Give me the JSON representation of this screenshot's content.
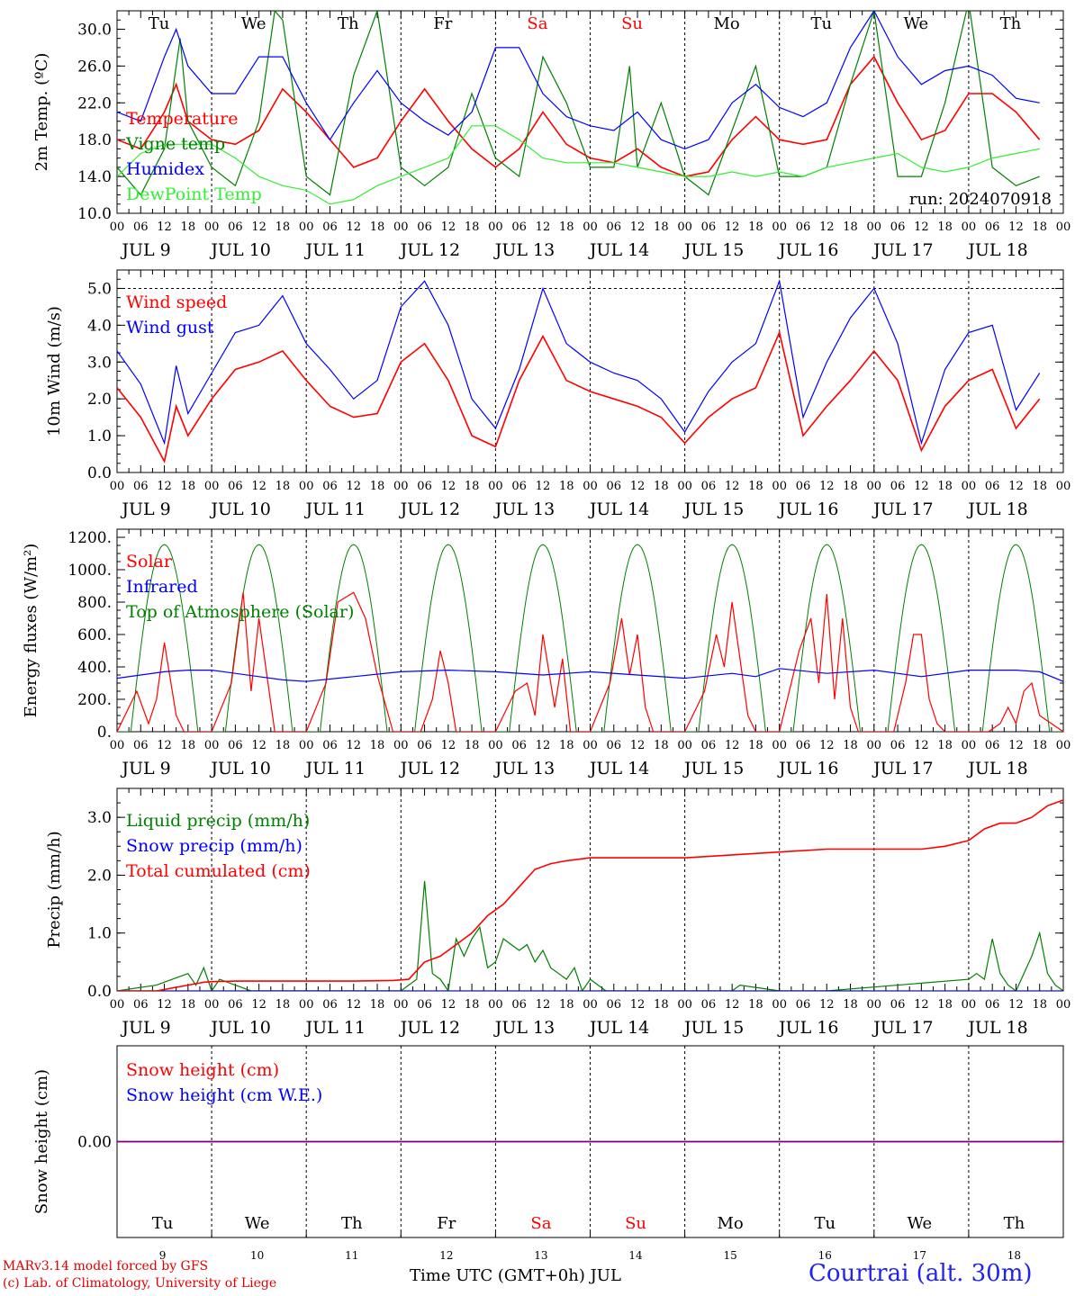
{
  "colors": {
    "red": "#ff0000",
    "green": "#008000",
    "blue": "#0000ff",
    "light_green": "#33ee33",
    "purple": "#800080",
    "axis": "#000000"
  },
  "days": {
    "abbr": [
      "Tu",
      "We",
      "Th",
      "Fr",
      "Sa",
      "Su",
      "Mo",
      "Tu",
      "We",
      "Th"
    ],
    "weekend": [
      false,
      false,
      false,
      false,
      true,
      true,
      false,
      false,
      false,
      false
    ],
    "date_labels": [
      "JUL  9",
      "JUL 10",
      "JUL 11",
      "JUL 12",
      "JUL 13",
      "JUL 14",
      "JUL 15",
      "JUL 16",
      "JUL 17",
      "JUL 18"
    ],
    "day_numbers": [
      "9",
      "10",
      "11",
      "12",
      "13",
      "14",
      "15",
      "16",
      "17",
      "18"
    ],
    "hour_ticks": [
      "00",
      "06",
      "12",
      "18"
    ],
    "end_hour": "00"
  },
  "chart_data": [
    {
      "type": "line",
      "ylabel": "2m Temp. (ºC)",
      "ylim": [
        10,
        32
      ],
      "yticks": [
        "10.0",
        "14.0",
        "18.0",
        "22.0",
        "26.0",
        "30.0"
      ],
      "x_unit": "hours since JUL 9 00 UTC",
      "run_label": "run: 2024070918",
      "series": [
        {
          "name": "Temperature",
          "color": "#ff0000",
          "x": [
            0,
            6,
            12,
            15,
            18,
            24,
            30,
            36,
            42,
            48,
            54,
            60,
            66,
            72,
            78,
            84,
            90,
            96,
            102,
            108,
            114,
            120,
            126,
            132,
            138,
            144,
            150,
            156,
            162,
            168,
            174,
            180,
            186,
            192,
            198,
            204,
            210,
            216,
            222,
            228,
            234
          ],
          "values": [
            18,
            17,
            21,
            24,
            20,
            18,
            17.5,
            19,
            23.5,
            21,
            18,
            15,
            16,
            20,
            23.5,
            20,
            17,
            15,
            17,
            21,
            17.5,
            16,
            15.5,
            17,
            15,
            14,
            14.5,
            18,
            20.5,
            18,
            17.5,
            18,
            24,
            27,
            22,
            18,
            19,
            23,
            23,
            21,
            18
          ]
        },
        {
          "name": "Vigne temp",
          "color": "#008000",
          "x": [
            0,
            6,
            12,
            16,
            18,
            24,
            30,
            36,
            40,
            42,
            48,
            54,
            60,
            66,
            72,
            78,
            84,
            90,
            96,
            102,
            108,
            114,
            120,
            126,
            130,
            132,
            138,
            144,
            150,
            156,
            162,
            168,
            174,
            180,
            186,
            192,
            198,
            204,
            210,
            216,
            222,
            228,
            234
          ],
          "values": [
            15,
            12,
            17,
            29,
            20,
            15,
            13,
            20,
            32,
            31,
            14,
            12,
            25,
            32,
            15,
            13,
            15,
            23,
            16,
            14,
            27,
            22,
            15,
            15,
            26,
            15,
            22,
            14,
            12,
            19,
            26,
            14,
            14,
            15,
            24,
            32,
            14,
            14,
            22,
            33,
            15,
            13,
            14
          ]
        },
        {
          "name": "Humidex",
          "color": "#0000ff",
          "x": [
            0,
            6,
            12,
            15,
            18,
            24,
            30,
            36,
            42,
            48,
            54,
            60,
            66,
            72,
            78,
            84,
            90,
            96,
            102,
            108,
            114,
            120,
            126,
            132,
            138,
            144,
            150,
            156,
            162,
            168,
            174,
            180,
            186,
            192,
            198,
            204,
            210,
            216,
            222,
            228,
            234
          ],
          "values": [
            21,
            20,
            27,
            30,
            26,
            23,
            23,
            27,
            27,
            22,
            18,
            22,
            25.5,
            22,
            20,
            18.5,
            21,
            28,
            28,
            23,
            20.5,
            19.5,
            19,
            21,
            18,
            17,
            18,
            22,
            24,
            21.5,
            20.5,
            22,
            28,
            32,
            27,
            24,
            25.5,
            26,
            25,
            22.5,
            22
          ]
        },
        {
          "name": "DewPoint Temp",
          "color": "#33ee33",
          "x": [
            0,
            6,
            12,
            18,
            24,
            30,
            36,
            42,
            48,
            54,
            60,
            66,
            72,
            78,
            84,
            90,
            96,
            102,
            108,
            114,
            120,
            126,
            132,
            138,
            144,
            150,
            156,
            162,
            168,
            174,
            180,
            186,
            192,
            198,
            204,
            210,
            216,
            222,
            228,
            234
          ],
          "values": [
            14,
            16.5,
            17.5,
            17.5,
            17.5,
            16,
            14,
            13,
            12.5,
            11,
            11.5,
            13,
            14,
            15,
            16,
            19.5,
            19.5,
            18,
            16,
            15.5,
            15.5,
            15.5,
            15,
            14.5,
            14,
            14,
            14.5,
            14,
            14.5,
            14,
            15,
            15.5,
            16,
            16.5,
            15,
            14.5,
            15,
            16,
            16.5,
            17
          ]
        }
      ]
    },
    {
      "type": "line",
      "ylabel": "10m Wind (m/s)",
      "ylim": [
        0,
        5.5
      ],
      "yticks": [
        "0.0",
        "1.0",
        "2.0",
        "3.0",
        "4.0",
        "5.0"
      ],
      "series": [
        {
          "name": "Wind speed",
          "color": "#ff0000",
          "x": [
            0,
            6,
            12,
            15,
            18,
            24,
            30,
            36,
            42,
            48,
            54,
            60,
            66,
            72,
            78,
            84,
            90,
            96,
            102,
            108,
            114,
            120,
            126,
            132,
            138,
            144,
            150,
            156,
            162,
            168,
            174,
            180,
            186,
            192,
            198,
            204,
            210,
            216,
            222,
            228,
            234
          ],
          "values": [
            2.3,
            1.5,
            0.3,
            1.8,
            1,
            2,
            2.8,
            3,
            3.3,
            2.5,
            1.8,
            1.5,
            1.6,
            3,
            3.5,
            2.5,
            1,
            0.7,
            2.5,
            3.7,
            2.5,
            2.2,
            2,
            1.8,
            1.5,
            0.8,
            1.5,
            2,
            2.3,
            3.8,
            1,
            1.8,
            2.5,
            3.3,
            2.5,
            0.6,
            1.8,
            2.5,
            2.8,
            1.2,
            2
          ]
        },
        {
          "name": "Wind gust",
          "color": "#0000ff",
          "x": [
            0,
            6,
            12,
            15,
            18,
            24,
            30,
            36,
            42,
            48,
            54,
            60,
            66,
            72,
            78,
            84,
            90,
            96,
            102,
            108,
            114,
            120,
            126,
            132,
            138,
            144,
            150,
            156,
            162,
            168,
            174,
            180,
            186,
            192,
            198,
            204,
            210,
            216,
            222,
            228,
            234
          ],
          "values": [
            3.3,
            2.4,
            0.8,
            2.9,
            1.6,
            2.7,
            3.8,
            4,
            4.8,
            3.5,
            2.8,
            2,
            2.5,
            4.5,
            5.2,
            4,
            2,
            1.2,
            2.8,
            5,
            3.5,
            3,
            2.7,
            2.5,
            2,
            1.1,
            2.2,
            3,
            3.5,
            5.2,
            1.5,
            3,
            4.2,
            5,
            3.5,
            0.8,
            2.8,
            3.8,
            4,
            1.7,
            2.7
          ]
        }
      ]
    },
    {
      "type": "line",
      "ylabel": "Energy fluxes (W/m²)",
      "ylim": [
        0,
        1250
      ],
      "yticks": [
        "0.",
        "200.",
        "400.",
        "600.",
        "800.",
        "1000.",
        "1200."
      ],
      "series": [
        {
          "name": "Solar",
          "color": "#ff0000",
          "x": [
            0,
            5,
            8,
            10,
            12,
            15,
            17,
            20,
            24,
            29,
            32,
            34,
            36,
            38,
            40,
            43,
            48,
            53,
            56,
            60,
            63,
            66,
            70,
            72,
            77,
            80,
            82,
            84,
            86,
            88,
            92,
            96,
            101,
            104,
            106,
            108,
            111,
            113,
            115,
            117,
            120,
            125,
            128,
            130,
            132,
            134,
            136,
            138,
            140,
            144,
            149,
            152,
            154,
            156,
            158,
            160,
            162,
            164,
            168,
            173,
            176,
            178,
            180,
            182,
            184,
            186,
            188,
            192,
            197,
            200,
            202,
            204,
            206,
            208,
            210,
            212,
            216,
            221,
            224,
            226,
            228,
            230,
            232,
            234,
            240
          ],
          "values": [
            0,
            250,
            50,
            200,
            550,
            100,
            0,
            0,
            0,
            300,
            860,
            250,
            700,
            350,
            0,
            0,
            0,
            300,
            800,
            860,
            700,
            350,
            0,
            0,
            0,
            200,
            500,
            300,
            0,
            0,
            0,
            0,
            250,
            300,
            100,
            600,
            150,
            450,
            0,
            0,
            0,
            300,
            700,
            350,
            600,
            150,
            0,
            0,
            0,
            0,
            250,
            600,
            400,
            800,
            450,
            100,
            0,
            0,
            0,
            500,
            700,
            300,
            850,
            200,
            700,
            150,
            0,
            0,
            0,
            300,
            600,
            600,
            200,
            50,
            0,
            0,
            0,
            0,
            50,
            150,
            50,
            250,
            300,
            100,
            0
          ]
        },
        {
          "name": "Infrared",
          "color": "#0000ff",
          "x": [
            0,
            12,
            18,
            24,
            36,
            42,
            48,
            60,
            72,
            84,
            96,
            108,
            120,
            132,
            144,
            156,
            162,
            168,
            180,
            192,
            204,
            216,
            228,
            234,
            240
          ],
          "values": [
            330,
            370,
            380,
            380,
            340,
            320,
            310,
            340,
            370,
            380,
            370,
            350,
            370,
            350,
            330,
            360,
            340,
            390,
            360,
            380,
            340,
            380,
            380,
            370,
            310
          ]
        },
        {
          "name": "Top of Atmosphere (Solar)",
          "color": "#008000",
          "x": [],
          "values": []
        }
      ]
    },
    {
      "type": "line",
      "ylabel": "Precip (mm/h)",
      "ylim": [
        0,
        3.5
      ],
      "yticks": [
        "0.0",
        "1.0",
        "2.0",
        "3.0"
      ],
      "series": [
        {
          "name": "Liquid precip (mm/h)",
          "color": "#008000",
          "x": [
            0,
            10,
            14,
            18,
            20,
            22,
            24,
            26,
            30,
            34,
            72,
            76,
            78,
            80,
            82,
            84,
            86,
            88,
            90,
            92,
            94,
            96,
            98,
            100,
            102,
            104,
            106,
            108,
            110,
            112,
            114,
            116,
            118,
            120,
            124,
            156,
            158,
            168,
            180,
            216,
            218,
            220,
            222,
            224,
            226,
            228,
            230,
            232,
            234,
            236,
            238,
            240
          ],
          "values": [
            0,
            0.1,
            0.2,
            0.3,
            0.1,
            0.4,
            0,
            0.2,
            0.1,
            0,
            0,
            0.2,
            1.9,
            0.3,
            0.2,
            0,
            0.9,
            0.6,
            0.9,
            1.1,
            0.4,
            0.5,
            0.9,
            0.8,
            0.7,
            0.8,
            0.5,
            0.7,
            0.4,
            0.3,
            0.2,
            0.4,
            0,
            0.2,
            0,
            0,
            0.1,
            0,
            0,
            0.2,
            0.3,
            0.2,
            0.9,
            0.3,
            0.1,
            0,
            0.3,
            0.6,
            1,
            0.3,
            0.1,
            0
          ]
        },
        {
          "name": "Snow precip (mm/h)",
          "color": "#0000ff",
          "x": [
            0,
            240
          ],
          "values": [
            0,
            0
          ]
        },
        {
          "name": "Total cumulated (cm)",
          "color": "#ff0000",
          "x": [
            0,
            10,
            18,
            22,
            24,
            30,
            36,
            48,
            60,
            70,
            74,
            78,
            82,
            86,
            90,
            94,
            98,
            102,
            106,
            110,
            114,
            120,
            126,
            132,
            144,
            156,
            168,
            180,
            192,
            204,
            210,
            216,
            220,
            224,
            228,
            232,
            236,
            240
          ],
          "values": [
            0,
            0,
            0.1,
            0.15,
            0.16,
            0.17,
            0.17,
            0.17,
            0.17,
            0.18,
            0.2,
            0.5,
            0.6,
            0.8,
            1.0,
            1.3,
            1.5,
            1.8,
            2.1,
            2.2,
            2.25,
            2.3,
            2.3,
            2.3,
            2.3,
            2.35,
            2.4,
            2.45,
            2.45,
            2.45,
            2.5,
            2.6,
            2.8,
            2.9,
            2.9,
            3.0,
            3.2,
            3.3
          ]
        }
      ]
    },
    {
      "type": "line",
      "ylabel": "Snow height (cm)",
      "yticks": [
        "0.00"
      ],
      "xlabel": "Time UTC (GMT+0h) JUL",
      "series": [
        {
          "name": "Snow height (cm)",
          "color": "#ff0000",
          "x": [
            0,
            240
          ],
          "values": [
            0,
            0
          ]
        },
        {
          "name": "Snow height (cm W.E.)",
          "color": "#0000ff",
          "x": [
            0,
            240
          ],
          "values": [
            0,
            0
          ]
        }
      ]
    }
  ],
  "footer": {
    "credit_line1": "MARv3.14 model forced by GFS",
    "credit_line2": "(c) Lab. of Climatology, University of Liege",
    "station": "Courtrai (alt. 30m)"
  }
}
